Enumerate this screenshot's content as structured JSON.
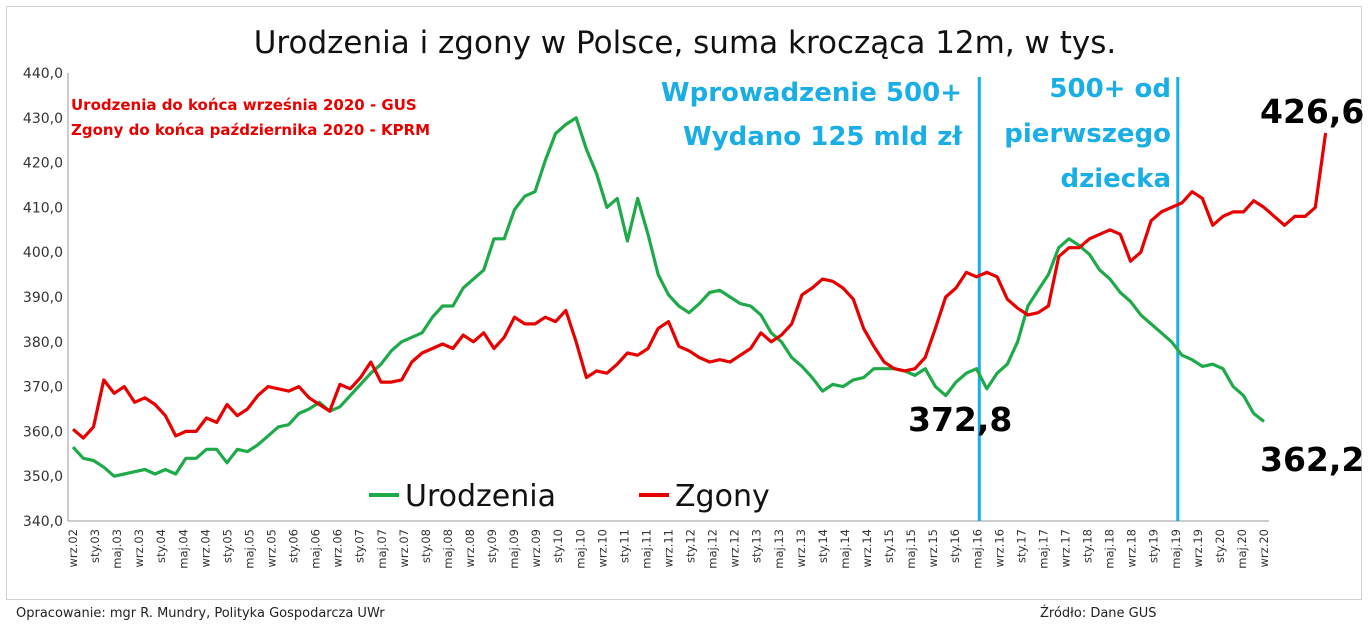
{
  "chart_data": {
    "type": "line",
    "title": "Urodzenia i zgony w Polsce, suma krocząca 12m, w tys.",
    "ylim": [
      340,
      440
    ],
    "y_ticks": [
      "440,0",
      "430,0",
      "420,0",
      "410,0",
      "400,0",
      "390,0",
      "380,0",
      "370,0",
      "360,0",
      "350,0",
      "340,0"
    ],
    "x_tick_labels": [
      "wrz.02",
      "sty.03",
      "maj.03",
      "wrz.03",
      "sty.04",
      "maj.04",
      "wrz.04",
      "sty.05",
      "maj.05",
      "wrz.05",
      "sty.06",
      "maj.06",
      "wrz.06",
      "sty.07",
      "maj.07",
      "wrz.07",
      "sty.08",
      "maj.08",
      "wrz.08",
      "sty.09",
      "maj.09",
      "wrz.09",
      "sty.10",
      "maj.10",
      "wrz.10",
      "sty.11",
      "maj.11",
      "wrz.11",
      "sty.12",
      "maj.12",
      "wrz.12",
      "sty.13",
      "maj.13",
      "wrz.13",
      "sty.14",
      "maj.14",
      "wrz.14",
      "sty.15",
      "maj.15",
      "wrz.15",
      "sty.16",
      "maj.16",
      "wrz.16",
      "sty.17",
      "maj.17",
      "wrz.17",
      "sty.18",
      "maj.18",
      "wrz.18",
      "sty.19",
      "maj.19",
      "wrz.19",
      "sty.20",
      "maj.20",
      "wrz.20"
    ],
    "grid": false,
    "legend_placement": "bottom-center",
    "series": [
      {
        "name": "Urodzenia",
        "color": "#1faa4a",
        "values": [
          356.5,
          354,
          353.5,
          352,
          350,
          350.5,
          351,
          351.5,
          350.5,
          351.5,
          350.5,
          354,
          354,
          356,
          356,
          353,
          356,
          355.5,
          357,
          359,
          361,
          361.5,
          364,
          365,
          366.5,
          364.5,
          365.5,
          368,
          370.5,
          373,
          375,
          378,
          380,
          381,
          382,
          385.5,
          388,
          388,
          392,
          394,
          396,
          403,
          403,
          409.5,
          412.5,
          413.5,
          420.5,
          426.5,
          428.5,
          430,
          423,
          417.5,
          410,
          412,
          402.5,
          412,
          404,
          395,
          390.5,
          388,
          386.5,
          388.5,
          391,
          391.5,
          390,
          388.5,
          388,
          386,
          382,
          380,
          376.5,
          374.5,
          372,
          369,
          370.5,
          370,
          371.5,
          372,
          374,
          374,
          374,
          373.5,
          372.5,
          374,
          370,
          368,
          371,
          373,
          374,
          369.5,
          373,
          375,
          380,
          388,
          391.5,
          395,
          401,
          403,
          401.5,
          399.5,
          396,
          394,
          391,
          389,
          386,
          384,
          382,
          380,
          377,
          376,
          374.5,
          375,
          374,
          370,
          368,
          364,
          362.2
        ]
      },
      {
        "name": "Zgony",
        "color": "#e80000",
        "values": [
          360.5,
          358.5,
          361,
          371.5,
          368.5,
          370,
          366.5,
          367.5,
          366,
          363.5,
          359,
          360,
          360,
          363,
          362,
          366,
          363.5,
          365,
          368,
          370,
          369.5,
          369,
          370,
          367.5,
          366,
          364.5,
          370.5,
          369.5,
          372,
          375.5,
          371,
          371,
          371.5,
          375.5,
          377.5,
          378.5,
          379.5,
          378.5,
          381.5,
          380,
          382,
          378.5,
          381,
          385.5,
          384,
          384,
          385.5,
          384.5,
          387,
          380,
          372,
          373.5,
          373,
          375,
          377.5,
          377,
          378.5,
          383,
          384.5,
          379,
          378,
          376.5,
          375.5,
          376,
          375.5,
          377,
          378.5,
          382,
          380,
          381.5,
          384,
          390.5,
          392,
          394,
          393.5,
          392,
          389.5,
          383,
          379,
          375.5,
          374,
          373.5,
          374,
          376.5,
          383,
          390,
          392,
          395.5,
          394.5,
          395.5,
          394.5,
          389.5,
          387.5,
          386,
          386.5,
          388,
          399,
          401,
          401,
          403,
          404,
          405,
          404,
          398,
          400,
          407,
          409,
          410,
          411,
          413.5,
          412,
          406,
          408,
          409,
          409,
          411.5,
          410,
          408,
          406,
          408,
          408,
          410,
          426.6
        ]
      }
    ],
    "annotations": {
      "source_note_births": "Urodzenia do końca września 2020 - GUS",
      "source_note_deaths": "Zgony do końca października 2020 - KPRM",
      "policy_1": [
        "Wprowadzenie 500+",
        "Wydano 125 mld zł"
      ],
      "policy_2": [
        "500+ od",
        "pierwszego",
        "dziecka"
      ],
      "value_372_8": "372,8",
      "value_426_6": "426,6",
      "value_362_2": "362,2"
    },
    "vertical_markers": [
      {
        "at_label": "maj.16",
        "color": "#19aee6"
      },
      {
        "at_label": "maj.19",
        "color": "#19aee6"
      }
    ]
  },
  "footer": {
    "left": "Opracowanie: mgr R. Mundry, Polityka Gospodarcza UWr",
    "right": "Źródło: Dane GUS"
  }
}
